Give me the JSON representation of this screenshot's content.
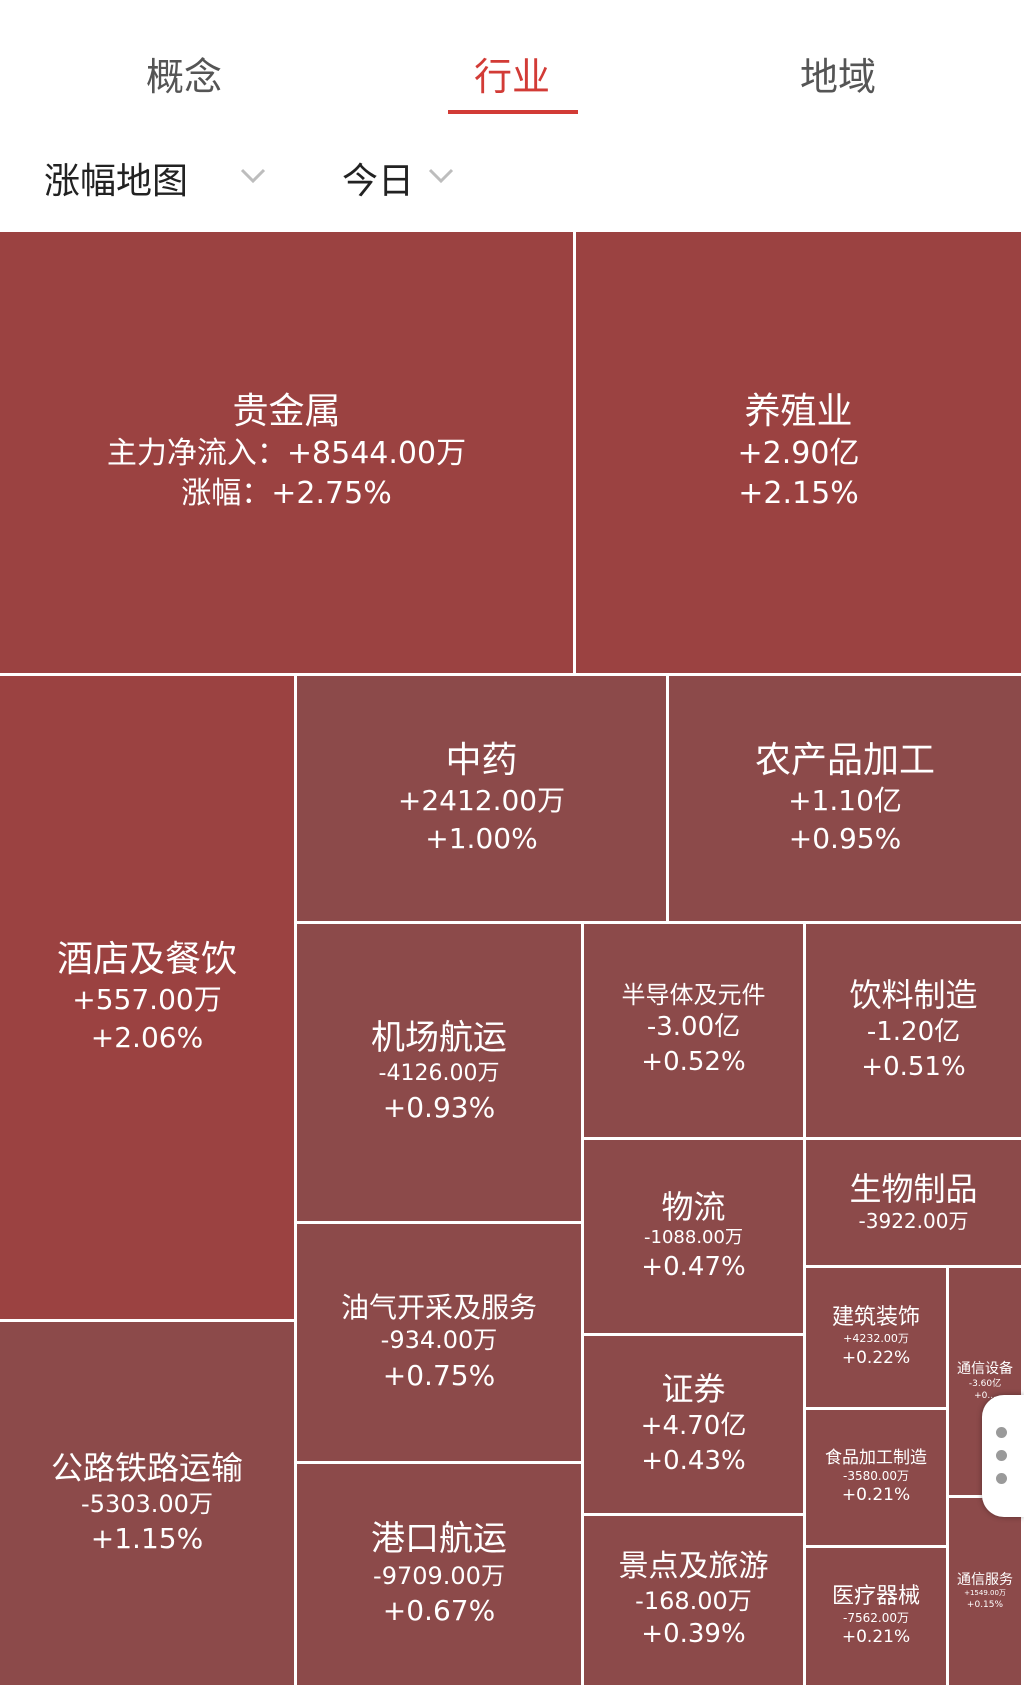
{
  "tabs": [
    {
      "label": "概念",
      "active": false
    },
    {
      "label": "行业",
      "active": true
    },
    {
      "label": "地域",
      "active": false
    }
  ],
  "filters": {
    "map_type": "涨幅地图",
    "period": "今日"
  },
  "colors": {
    "accent": "#d23b36",
    "up_strong": "#9b4241",
    "up_mid": "#8c4a4a"
  },
  "tiles": [
    {
      "name": "贵金属",
      "flow": "主力净流入：+8544.00万",
      "change": "涨幅：+2.75%"
    },
    {
      "name": "养殖业",
      "flow": "+2.90亿",
      "change": "+2.15%"
    },
    {
      "name": "酒店及餐饮",
      "flow": "+557.00万",
      "change": "+2.06%"
    },
    {
      "name": "中药",
      "flow": "+2412.00万",
      "change": "+1.00%"
    },
    {
      "name": "农产品加工",
      "flow": "+1.10亿",
      "change": "+0.95%"
    },
    {
      "name": "机场航运",
      "flow": "-4126.00万",
      "change": "+0.93%"
    },
    {
      "name": "半导体及元件",
      "flow": "-3.00亿",
      "change": "+0.52%"
    },
    {
      "name": "饮料制造",
      "flow": "-1.20亿",
      "change": "+0.51%"
    },
    {
      "name": "物流",
      "flow": "-1088.00万",
      "change": "+0.47%"
    },
    {
      "name": "生物制品",
      "flow": "-3922.00万",
      "change": ""
    },
    {
      "name": "油气开采及服务",
      "flow": "-934.00万",
      "change": "+0.75%"
    },
    {
      "name": "证券",
      "flow": "+4.70亿",
      "change": "+0.43%"
    },
    {
      "name": "建筑装饰",
      "flow": "+4232.00万",
      "change": "+0.22%"
    },
    {
      "name": "通信设备",
      "flow": "-3.60亿",
      "change": "+0..."
    },
    {
      "name": "公路铁路运输",
      "flow": "-5303.00万",
      "change": "+1.15%"
    },
    {
      "name": "食品加工制造",
      "flow": "-3580.00万",
      "change": "+0.21%"
    },
    {
      "name": "港口航运",
      "flow": "-9709.00万",
      "change": "+0.67%"
    },
    {
      "name": "景点及旅游",
      "flow": "-168.00万",
      "change": "+0.39%"
    },
    {
      "name": "医疗器械",
      "flow": "-7562.00万",
      "change": "+0.21%"
    },
    {
      "name": "通信服务",
      "flow": "+1549.00万",
      "change": "+0.15%"
    }
  ]
}
